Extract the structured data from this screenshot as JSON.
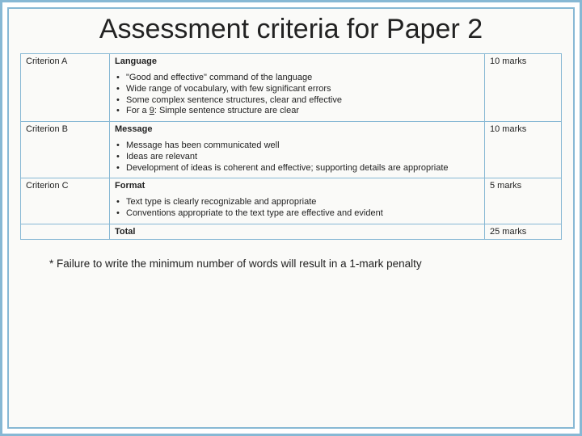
{
  "colors": {
    "border": "#87b8d4",
    "background": "#fafaf8",
    "text": "#222222"
  },
  "title": "Assessment criteria for Paper 2",
  "criteria": [
    {
      "id": "A",
      "label": "Criterion A",
      "name": "Language",
      "marks": "10 marks",
      "bullets": [
        "\"Good and effective\" command of the language",
        "Wide range of vocabulary, with few significant errors",
        "Some complex sentence structures, clear and effective",
        "For a 9: Simple sentence structure are clear"
      ],
      "underline_index": 3,
      "underline_text": "9"
    },
    {
      "id": "B",
      "label": "Criterion B",
      "name": "Message",
      "marks": "10 marks",
      "bullets": [
        "Message has been communicated well",
        "Ideas are relevant",
        "Development of ideas is coherent and effective; supporting details are appropriate"
      ]
    },
    {
      "id": "C",
      "label": "Criterion C",
      "name": "Format",
      "marks": "5 marks",
      "bullets": [
        "Text type is clearly recognizable and appropriate",
        "Conventions appropriate to the text type are effective and evident"
      ]
    }
  ],
  "total": {
    "label": "Total",
    "marks": "25 marks"
  },
  "footnote": "* Failure to write the minimum number of words will result in a 1-mark penalty"
}
